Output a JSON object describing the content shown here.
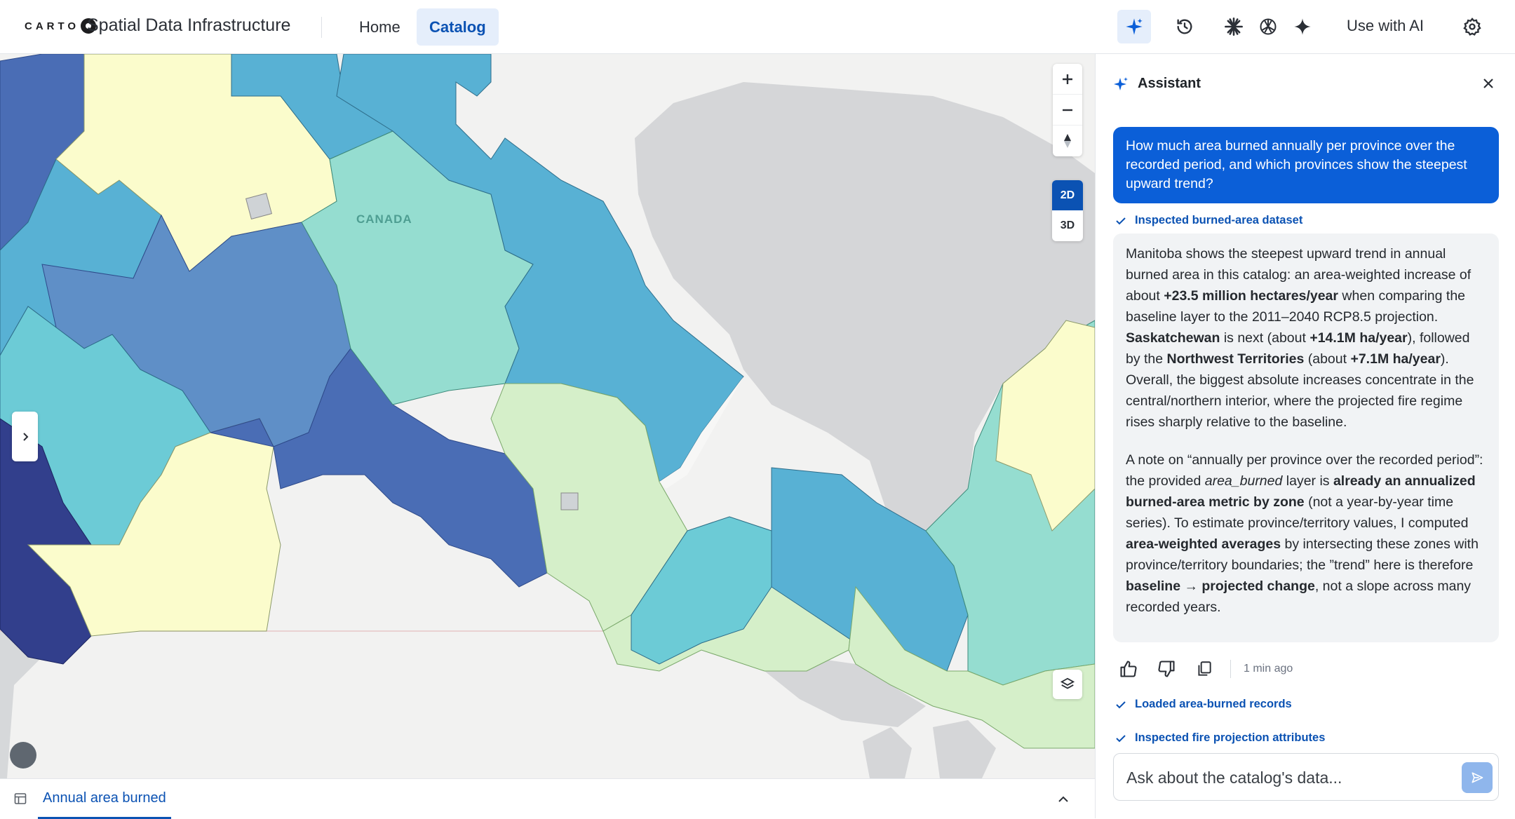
{
  "header": {
    "logo_text": "CARTO",
    "app_title": "Spatial Data Infrastructure",
    "nav": [
      {
        "label": "Home",
        "active": false
      },
      {
        "label": "Catalog",
        "active": true
      }
    ],
    "icons": [
      "assistant-sparkle-icon",
      "history-icon",
      "claude-icon",
      "openai-icon",
      "gemini-icon",
      "settings-icon"
    ],
    "use_ai_label": "Use with AI",
    "accent_color": "#0b52b3"
  },
  "map": {
    "country_label": "CANADA",
    "view_modes": [
      "2D",
      "3D"
    ],
    "active_view": "2D",
    "zoom_in": "+",
    "zoom_out": "−",
    "palette": [
      "#323f8c",
      "#4a6db5",
      "#5f8fc7",
      "#58b1d4",
      "#6ccbd6",
      "#95ddd0",
      "#d5efc9",
      "#fbfccc"
    ]
  },
  "bottom_bar": {
    "tab_label": "Annual area burned"
  },
  "assistant": {
    "title": "Assistant",
    "user_message": "How much area burned annually per province over the recorded period, and which provinces show the steepest upward trend?",
    "steps": [
      "Inspected burned-area dataset",
      "Loaded area-burned records",
      "Inspected fire projection attributes"
    ],
    "reply": {
      "p1_a": "Manitoba shows the steepest upward trend in annual burned area in this catalog: an area-weighted increase of about ",
      "p1_b": "+23.5 million hectares/year",
      "p1_c": " when comparing the baseline layer to the 2011–2040 RCP8.5 projection. ",
      "p1_d": "Saskatchewan",
      "p1_e": " is next (about ",
      "p1_f": "+14.1M ha/year",
      "p1_g": "), followed by the ",
      "p1_h": "Northwest Territories",
      "p1_i": " (about ",
      "p1_j": "+7.1M ha/year",
      "p1_k": "). Overall, the biggest absolute increases concentrate in the central/northern interior, where the projected fire regime rises sharply relative to the baseline.",
      "p2_a": "A note on “annually per province over the recorded period”: the provided ",
      "p2_b": "area_burned",
      "p2_c": " layer is ",
      "p2_d": "already an annualized burned-area metric by zone",
      "p2_e": " (not a year-by-year time series). To estimate province/territory values, I computed ",
      "p2_f": "area-weighted averages",
      "p2_g": " by intersecting these zones with province/territory boundaries; the ”trend” here is therefore ",
      "p2_h": "baseline → projected change",
      "p2_i": ", not a slope across many recorded years."
    },
    "feedback_time": "1 min ago",
    "input_placeholder": "Ask about the catalog's data..."
  }
}
